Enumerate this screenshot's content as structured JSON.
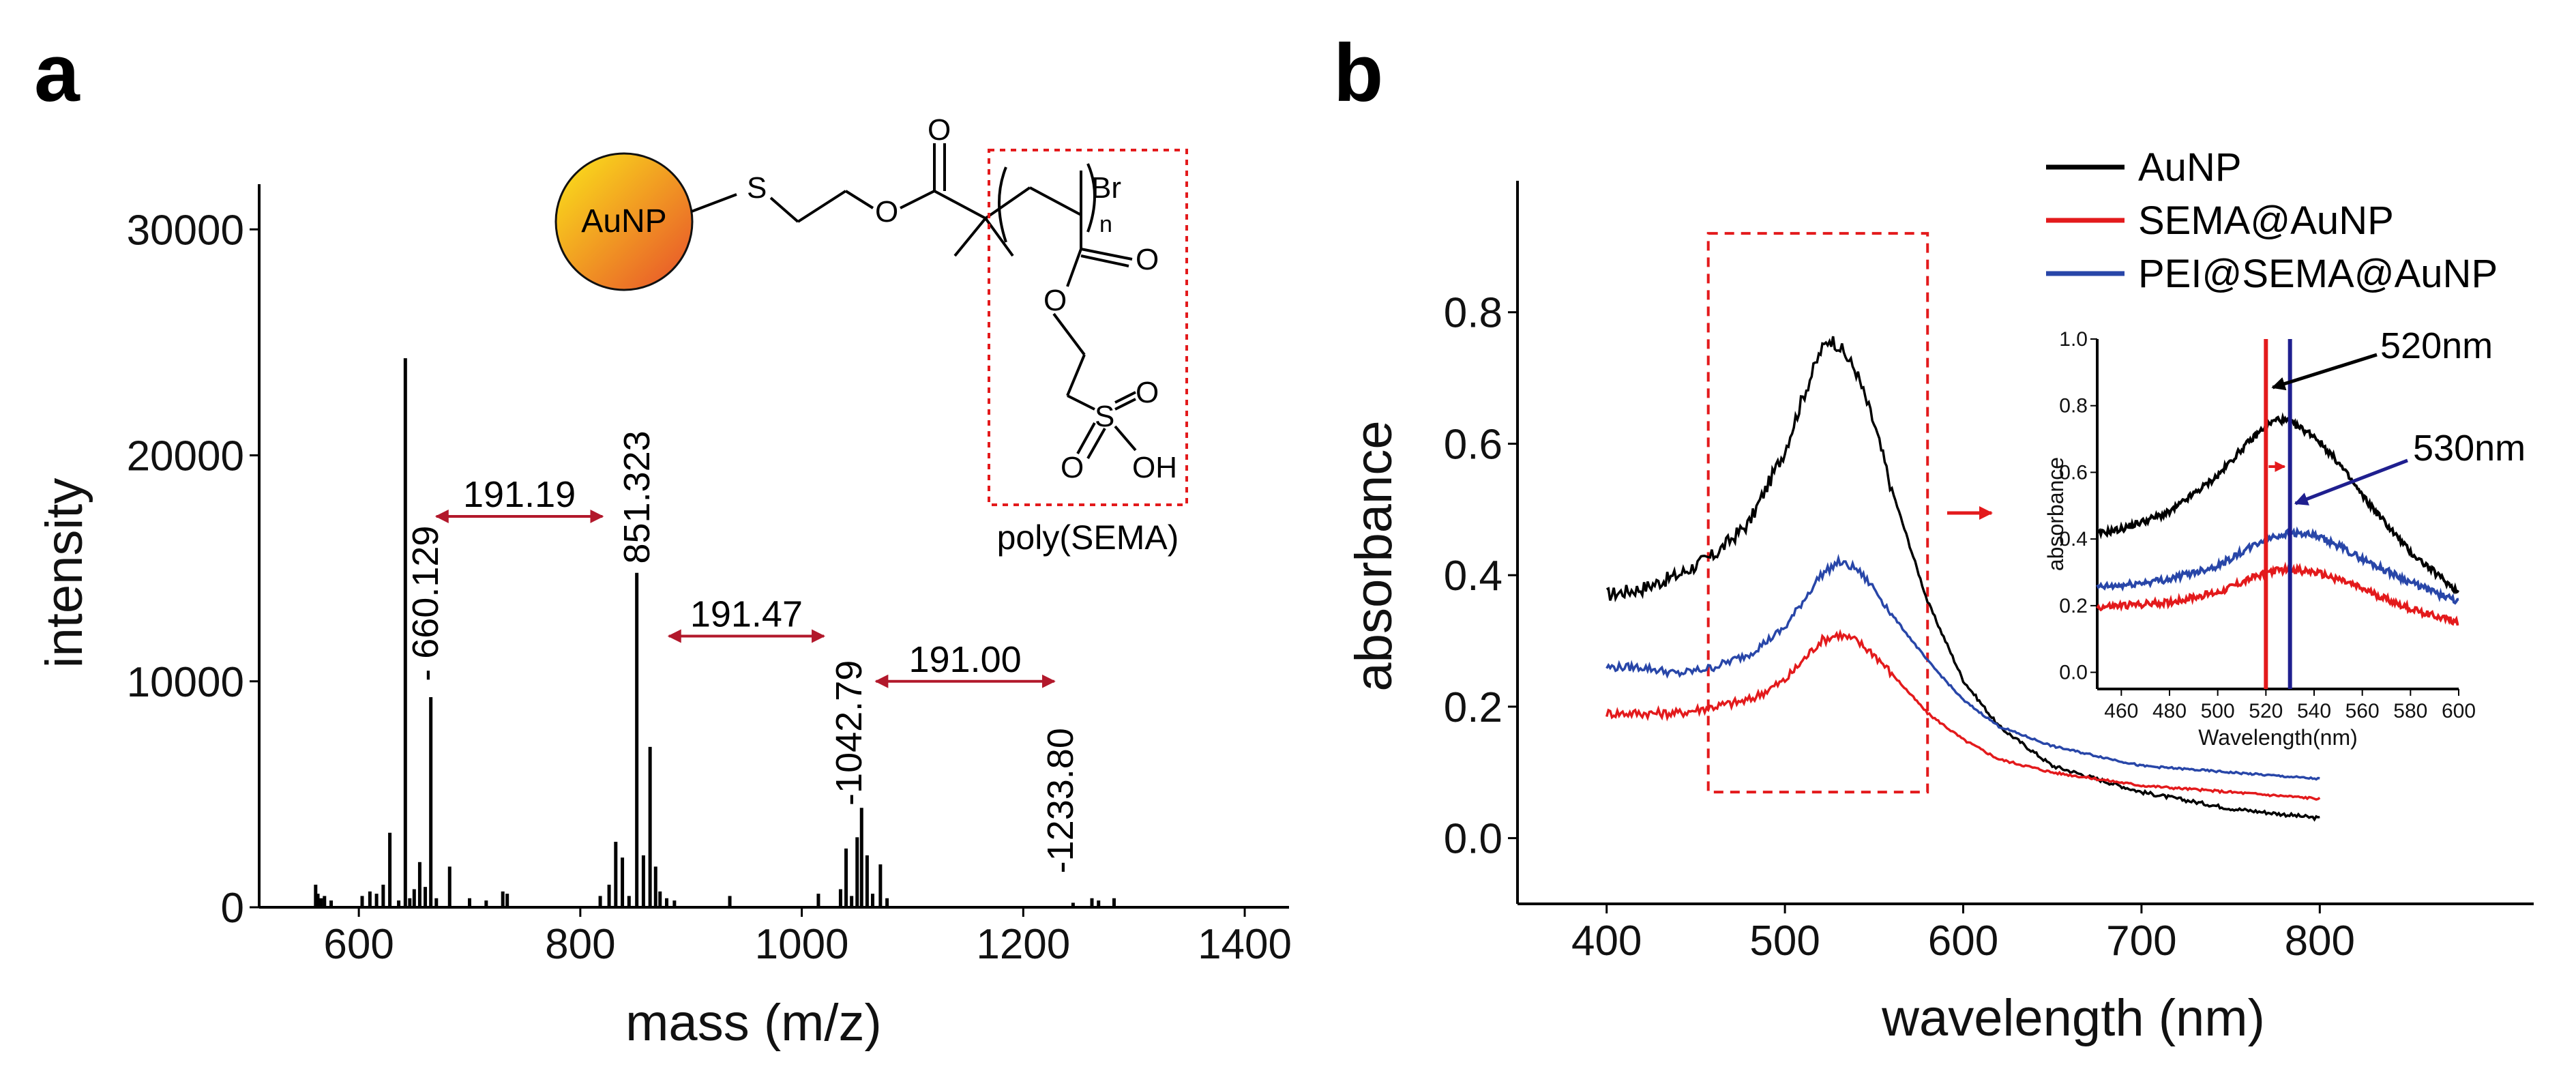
{
  "chart_data": [
    {
      "panel": "a",
      "type": "bar",
      "subtype": "mass-spectrum",
      "xlabel": "mass (m/z)",
      "ylabel": "intensity",
      "xlim": [
        510,
        1440
      ],
      "ylim": [
        0,
        32000
      ],
      "xticks": [
        600,
        800,
        1000,
        1200,
        1400
      ],
      "yticks": [
        0,
        10000,
        20000,
        30000
      ],
      "peaks": [
        {
          "mz": 561,
          "intensity": 1000
        },
        {
          "mz": 563,
          "intensity": 600
        },
        {
          "mz": 566,
          "intensity": 400
        },
        {
          "mz": 569,
          "intensity": 500
        },
        {
          "mz": 575,
          "intensity": 300
        },
        {
          "mz": 603,
          "intensity": 500
        },
        {
          "mz": 610,
          "intensity": 700
        },
        {
          "mz": 616,
          "intensity": 600
        },
        {
          "mz": 622,
          "intensity": 1000
        },
        {
          "mz": 628,
          "intensity": 3300
        },
        {
          "mz": 636,
          "intensity": 300
        },
        {
          "mz": 642,
          "intensity": 24300
        },
        {
          "mz": 646,
          "intensity": 400
        },
        {
          "mz": 650,
          "intensity": 800
        },
        {
          "mz": 655,
          "intensity": 2000
        },
        {
          "mz": 660,
          "intensity": 900
        },
        {
          "mz": 665,
          "intensity": 9300
        },
        {
          "mz": 670,
          "intensity": 400
        },
        {
          "mz": 682,
          "intensity": 1800
        },
        {
          "mz": 700,
          "intensity": 400
        },
        {
          "mz": 715,
          "intensity": 300
        },
        {
          "mz": 730,
          "intensity": 700
        },
        {
          "mz": 734,
          "intensity": 600
        },
        {
          "mz": 818,
          "intensity": 500
        },
        {
          "mz": 826,
          "intensity": 1000
        },
        {
          "mz": 832,
          "intensity": 2900
        },
        {
          "mz": 838,
          "intensity": 2200
        },
        {
          "mz": 844,
          "intensity": 500
        },
        {
          "mz": 851,
          "intensity": 14800
        },
        {
          "mz": 857,
          "intensity": 2300
        },
        {
          "mz": 863,
          "intensity": 7100
        },
        {
          "mz": 868,
          "intensity": 1800
        },
        {
          "mz": 872,
          "intensity": 700
        },
        {
          "mz": 878,
          "intensity": 400
        },
        {
          "mz": 885,
          "intensity": 300
        },
        {
          "mz": 935,
          "intensity": 500
        },
        {
          "mz": 1015,
          "intensity": 600
        },
        {
          "mz": 1035,
          "intensity": 800
        },
        {
          "mz": 1040,
          "intensity": 2600
        },
        {
          "mz": 1045,
          "intensity": 500
        },
        {
          "mz": 1050,
          "intensity": 3100
        },
        {
          "mz": 1054,
          "intensity": 4400
        },
        {
          "mz": 1059,
          "intensity": 2300
        },
        {
          "mz": 1064,
          "intensity": 600
        },
        {
          "mz": 1071,
          "intensity": 1900
        },
        {
          "mz": 1077,
          "intensity": 400
        },
        {
          "mz": 1245,
          "intensity": 200
        },
        {
          "mz": 1262,
          "intensity": 400
        },
        {
          "mz": 1268,
          "intensity": 300
        },
        {
          "mz": 1282,
          "intensity": 400
        }
      ],
      "peak_labels": [
        {
          "text": "- 660.129",
          "mz": 660.129,
          "intensity": 10000
        },
        {
          "text": "851.323",
          "mz": 851.323,
          "intensity": 15200
        },
        {
          "text": "-1042.79",
          "mz": 1042.79,
          "intensity": 4500
        },
        {
          "text": "-1233.80",
          "mz": 1233.8,
          "intensity": 1500
        }
      ],
      "mass_differences": [
        {
          "text": "191.19",
          "from": 670,
          "to": 820,
          "intensity": 17300
        },
        {
          "text": "191.47",
          "from": 880,
          "to": 1020,
          "intensity": 12000
        },
        {
          "text": "191.00",
          "from": 1067,
          "to": 1228,
          "intensity": 10000
        }
      ],
      "structure": {
        "core_label": "AuNP",
        "atoms": {
          "S": "S",
          "O_ester": "O",
          "O_carbonyl": "O",
          "Br": "Br",
          "n": "n",
          "O_side_carbonyl": "O",
          "O_side_ester": "O",
          "S_sulfo": "S",
          "O_sulfo_1": "O",
          "O_sulfo_2": "O",
          "OH": "OH"
        },
        "monomer_label": "poly(SEMA)",
        "core_color_start": "#F9D71C",
        "core_color_end": "#E8562A",
        "box_color": "#E31A1C"
      }
    },
    {
      "panel": "b",
      "type": "line",
      "xlabel": "wavelength (nm)",
      "ylabel": "absorbance",
      "xlim": [
        350,
        920
      ],
      "ylim": [
        -0.1,
        1.0
      ],
      "xticks": [
        400,
        500,
        600,
        700,
        800
      ],
      "yticks": [
        0.0,
        0.2,
        0.4,
        0.6,
        0.8
      ],
      "series": [
        {
          "name": "AuNP",
          "color": "#000000",
          "x": [
            400,
            420,
            440,
            460,
            480,
            500,
            510,
            520,
            525,
            530,
            540,
            550,
            560,
            580,
            600,
            620,
            650,
            700,
            750,
            800
          ],
          "y": [
            0.37,
            0.38,
            0.4,
            0.43,
            0.48,
            0.59,
            0.67,
            0.74,
            0.76,
            0.75,
            0.71,
            0.63,
            0.53,
            0.36,
            0.24,
            0.17,
            0.11,
            0.07,
            0.045,
            0.03
          ]
        },
        {
          "name": "SEMA@AuNP",
          "color": "#E31A1C",
          "x": [
            400,
            420,
            440,
            460,
            480,
            500,
            510,
            520,
            530,
            540,
            550,
            560,
            580,
            600,
            620,
            650,
            700,
            750,
            800
          ],
          "y": [
            0.19,
            0.19,
            0.19,
            0.2,
            0.21,
            0.24,
            0.27,
            0.3,
            0.31,
            0.3,
            0.28,
            0.25,
            0.19,
            0.15,
            0.12,
            0.1,
            0.08,
            0.07,
            0.06
          ]
        },
        {
          "name": "PEI@SEMA@AuNP",
          "color": "#2846A8",
          "x": [
            400,
            420,
            440,
            460,
            480,
            500,
            510,
            520,
            530,
            540,
            550,
            560,
            580,
            600,
            620,
            650,
            700,
            750,
            800
          ],
          "y": [
            0.26,
            0.26,
            0.25,
            0.26,
            0.28,
            0.32,
            0.36,
            0.4,
            0.42,
            0.41,
            0.38,
            0.34,
            0.27,
            0.21,
            0.17,
            0.14,
            0.11,
            0.1,
            0.09
          ]
        }
      ],
      "highlight_box": {
        "x": [
          457,
          580
        ],
        "y": [
          0.07,
          0.92
        ],
        "color": "#E31A1C"
      },
      "inset": {
        "xlabel": "Wavelength(nm)",
        "ylabel": "absorbance",
        "xlim": [
          450,
          600
        ],
        "ylim": [
          -0.05,
          1.0
        ],
        "xticks": [
          460,
          480,
          500,
          520,
          540,
          560,
          580,
          600
        ],
        "yticks": [
          0.0,
          0.2,
          0.4,
          0.6,
          0.8,
          1.0
        ],
        "ytick_labels": [
          "0.0",
          "0.2",
          "0.4",
          "0.6",
          "0.8",
          "1.0"
        ],
        "markers": [
          {
            "wavelength": 520,
            "label": "520nm",
            "color": "#E31A1C"
          },
          {
            "wavelength": 530,
            "label": "530nm",
            "color": "#1F1F8F"
          }
        ]
      }
    }
  ],
  "panel_letters": {
    "a": "a",
    "b": "b"
  }
}
